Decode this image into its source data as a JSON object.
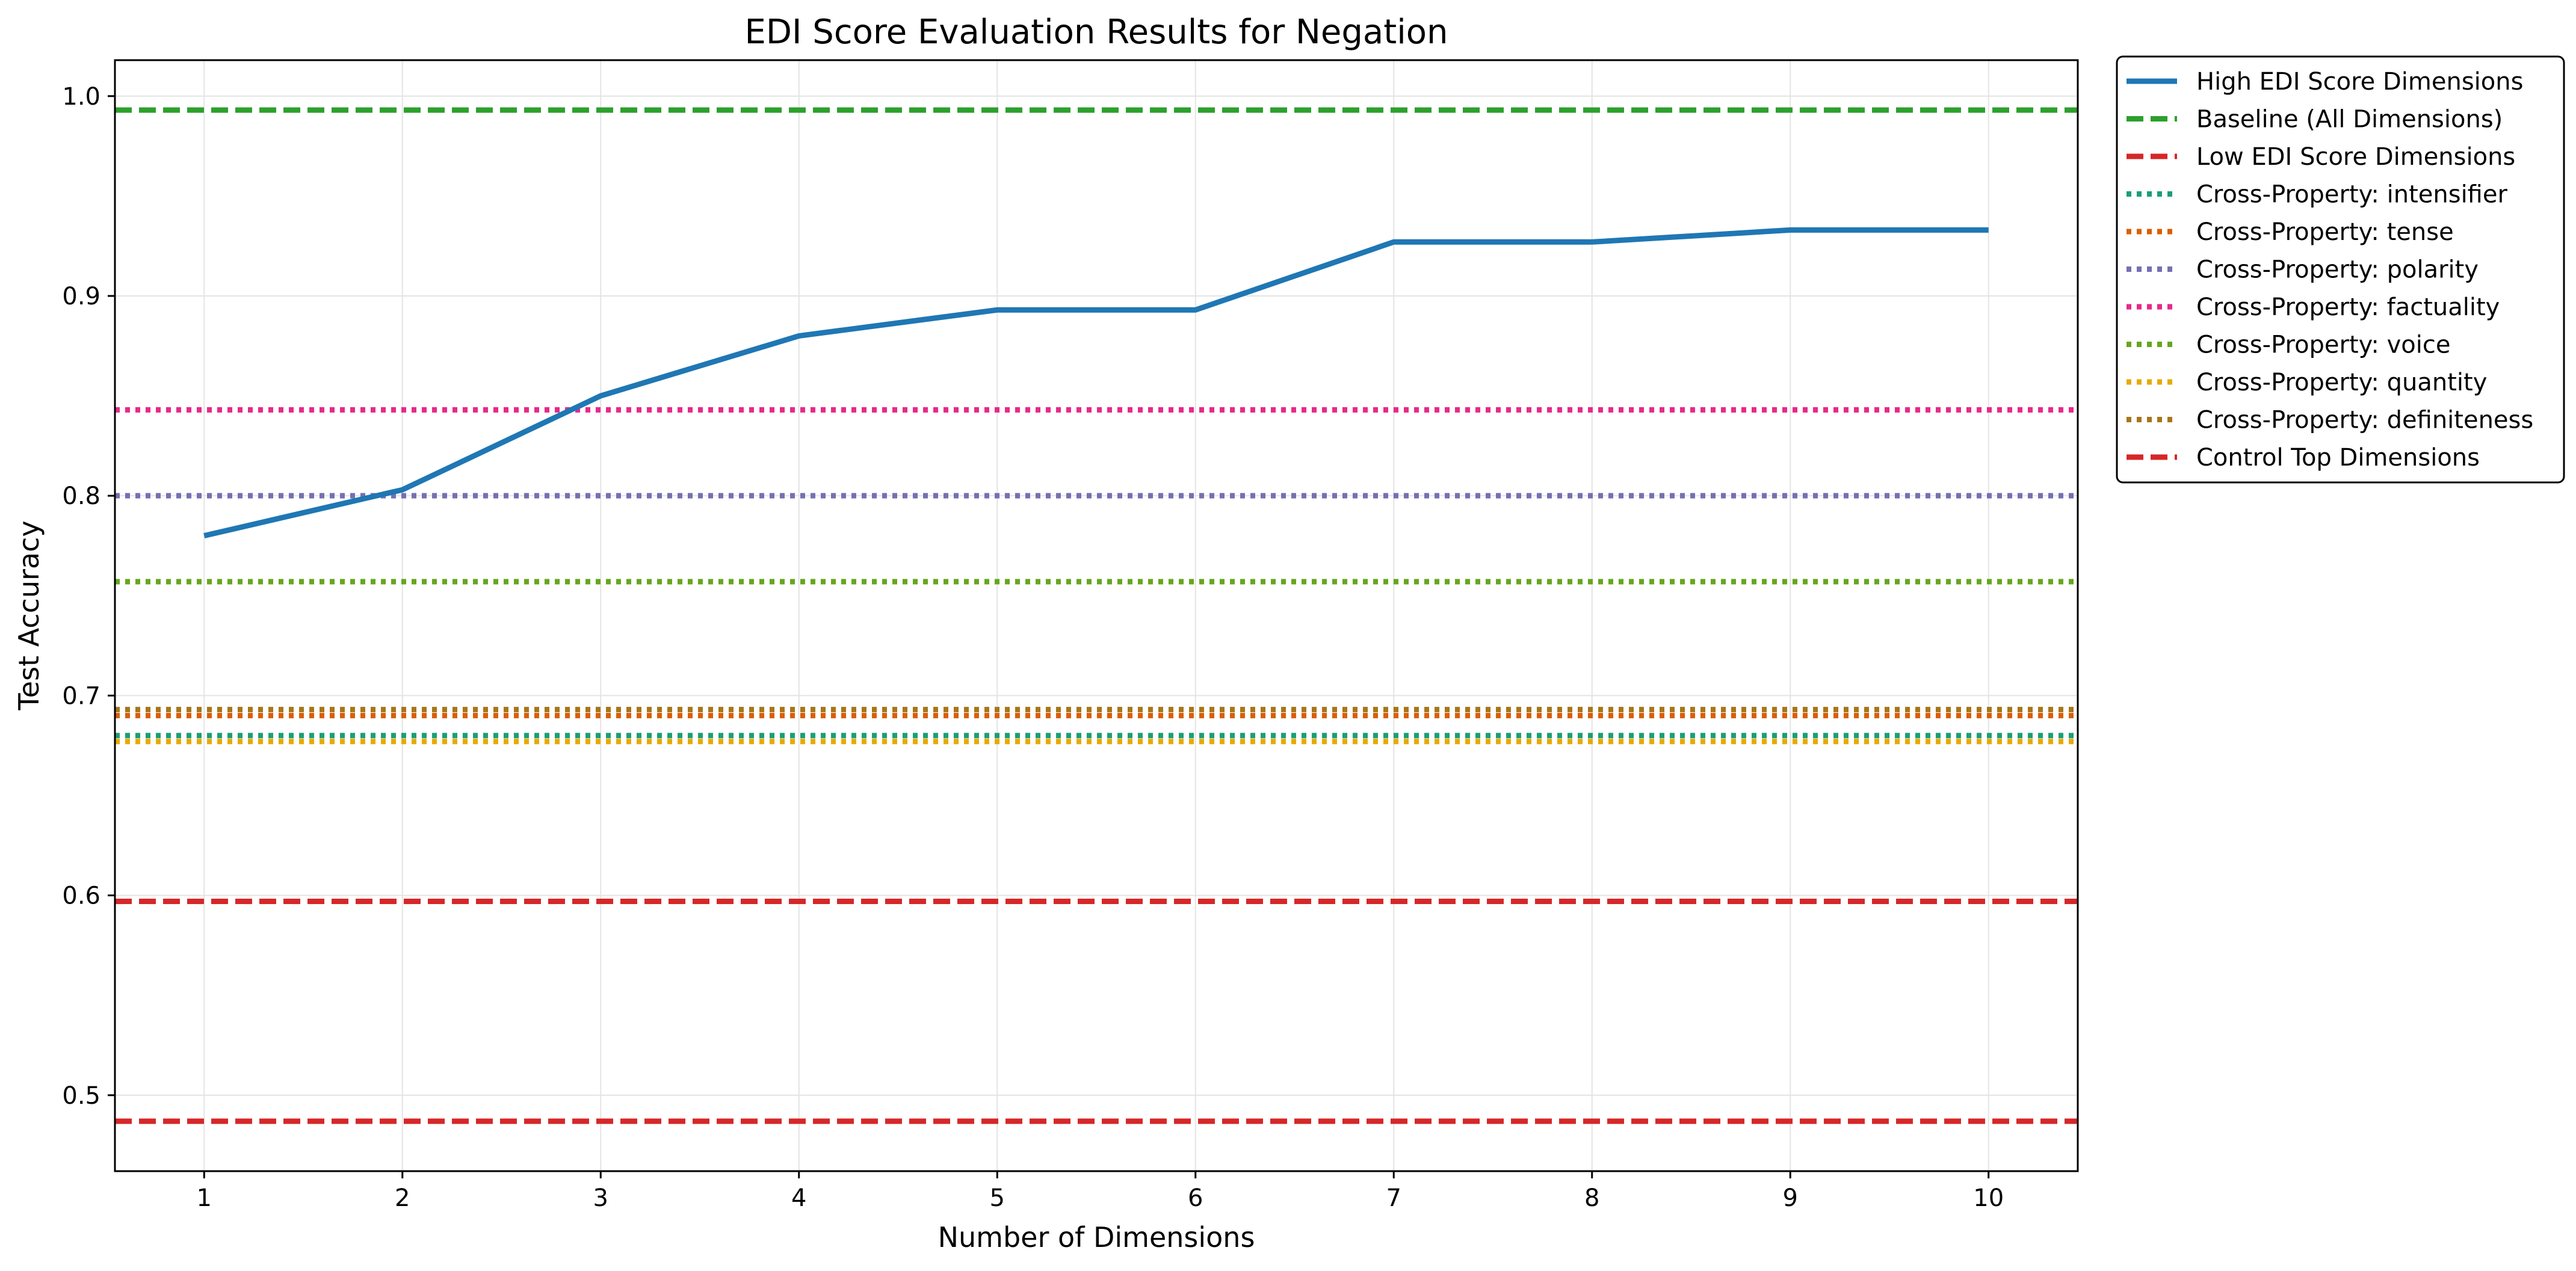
{
  "chart_data": {
    "type": "line",
    "title": "EDI Score Evaluation Results for Negation",
    "xlabel": "Number of Dimensions",
    "ylabel": "Test Accuracy",
    "x": [
      1,
      2,
      3,
      4,
      5,
      6,
      7,
      8,
      9,
      10
    ],
    "xlim": [
      0.55,
      10.45
    ],
    "ylim": [
      0.462,
      1.018
    ],
    "xticks": [
      "1",
      "2",
      "3",
      "4",
      "5",
      "6",
      "7",
      "8",
      "9",
      "10"
    ],
    "yticks": [
      "0.5",
      "0.6",
      "0.7",
      "0.8",
      "0.9",
      "1.0"
    ],
    "grid": true,
    "legend_position": "outside right, top",
    "series": [
      {
        "name": "High EDI Score Dimensions",
        "kind": "line",
        "style": "solid",
        "color": "#1f77b4",
        "values": [
          0.78,
          0.803,
          0.85,
          0.88,
          0.893,
          0.893,
          0.927,
          0.927,
          0.933,
          0.933
        ]
      },
      {
        "name": "Baseline (All Dimensions)",
        "kind": "hline",
        "style": "dashed",
        "color": "#2ca02c",
        "value": 0.993
      },
      {
        "name": "Low EDI Score Dimensions",
        "kind": "hline",
        "style": "dashed",
        "color": "#d62728",
        "value": 0.487
      },
      {
        "name": "Cross-Property: intensifier",
        "kind": "hline",
        "style": "dotted",
        "color": "#1b9e77",
        "value": 0.68
      },
      {
        "name": "Cross-Property: tense",
        "kind": "hline",
        "style": "dotted",
        "color": "#d95f02",
        "value": 0.69
      },
      {
        "name": "Cross-Property: polarity",
        "kind": "hline",
        "style": "dotted",
        "color": "#7570b3",
        "value": 0.8
      },
      {
        "name": "Cross-Property: factuality",
        "kind": "hline",
        "style": "dotted",
        "color": "#e7298a",
        "value": 0.843
      },
      {
        "name": "Cross-Property: voice",
        "kind": "hline",
        "style": "dotted",
        "color": "#66a61e",
        "value": 0.757
      },
      {
        "name": "Cross-Property: quantity",
        "kind": "hline",
        "style": "dotted",
        "color": "#e6ab02",
        "value": 0.677
      },
      {
        "name": "Cross-Property: definiteness",
        "kind": "hline",
        "style": "dotted",
        "color": "#a6761d",
        "value": 0.693
      },
      {
        "name": "Control Top Dimensions",
        "kind": "hline",
        "style": "dashed",
        "color": "#d62728",
        "value": 0.597
      }
    ]
  }
}
